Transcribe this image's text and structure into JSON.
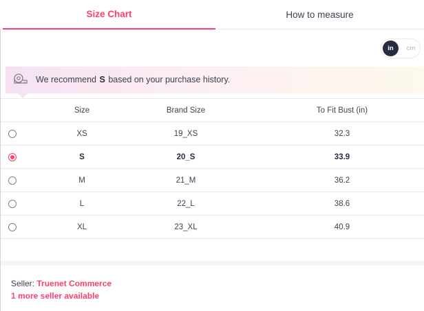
{
  "tabs": {
    "active_label": "Size Chart",
    "other_label": "How to measure"
  },
  "unit_toggle": {
    "selected": "in",
    "in_label": "in",
    "cm_label": "cm"
  },
  "recommendation": {
    "prefix": "We recommend",
    "size": "S",
    "suffix": "based on your purchase history.",
    "icon": "measuring-tape-icon"
  },
  "table": {
    "headers": [
      "Size",
      "Brand Size",
      "To Fit Bust (in)"
    ],
    "rows": [
      {
        "size": "XS",
        "brand_size": "19_XS",
        "bust": "32.3",
        "selected": false
      },
      {
        "size": "S",
        "brand_size": "20_S",
        "bust": "33.9",
        "selected": true
      },
      {
        "size": "M",
        "brand_size": "21_M",
        "bust": "36.2",
        "selected": false
      },
      {
        "size": "L",
        "brand_size": "22_L",
        "bust": "38.6",
        "selected": false
      },
      {
        "size": "XL",
        "brand_size": "23_XL",
        "bust": "40.9",
        "selected": false
      }
    ]
  },
  "seller": {
    "label": "Seller:",
    "name": "Truenet Commerce",
    "more_link": "1 more seller available"
  },
  "colors": {
    "accent": "#ff3f6c",
    "text": "#3e4152",
    "toggle_active": "#282c3f"
  }
}
